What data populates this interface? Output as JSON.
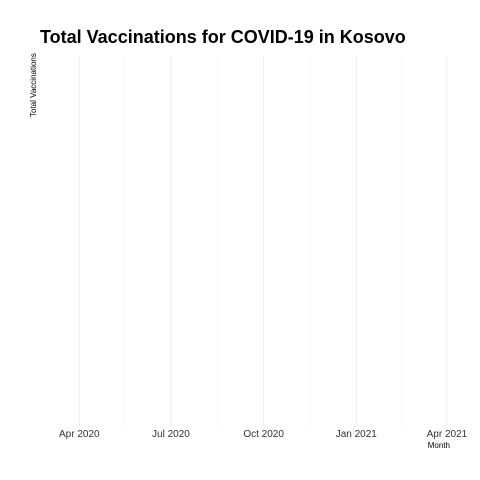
{
  "chart_data": {
    "type": "line",
    "title": "Total Vaccinations for COVID-19 in Kosovo",
    "xlabel": "Month",
    "ylabel": "Total Vaccinations",
    "x_axis": {
      "type": "date",
      "range": [
        "2020-02-22",
        "2021-04-10"
      ],
      "ticks": [
        {
          "value": "2020-04-01",
          "label": "Apr 2020"
        },
        {
          "value": "2020-07-01",
          "label": "Jul 2020"
        },
        {
          "value": "2020-10-01",
          "label": "Oct 2020"
        },
        {
          "value": "2021-01-01",
          "label": "Jan 2021"
        },
        {
          "value": "2021-04-01",
          "label": "Apr 2021"
        }
      ],
      "minor_ticks": [
        "2020-05-16",
        "2020-08-16",
        "2020-11-16",
        "2021-02-15"
      ]
    },
    "y_axis": {
      "ticks": []
    },
    "grid": true,
    "legend": "none",
    "series": [],
    "colors": {
      "background": "#ffffff",
      "grid_major": "#ebebeb",
      "grid_minor": "#f4f4f4"
    }
  }
}
